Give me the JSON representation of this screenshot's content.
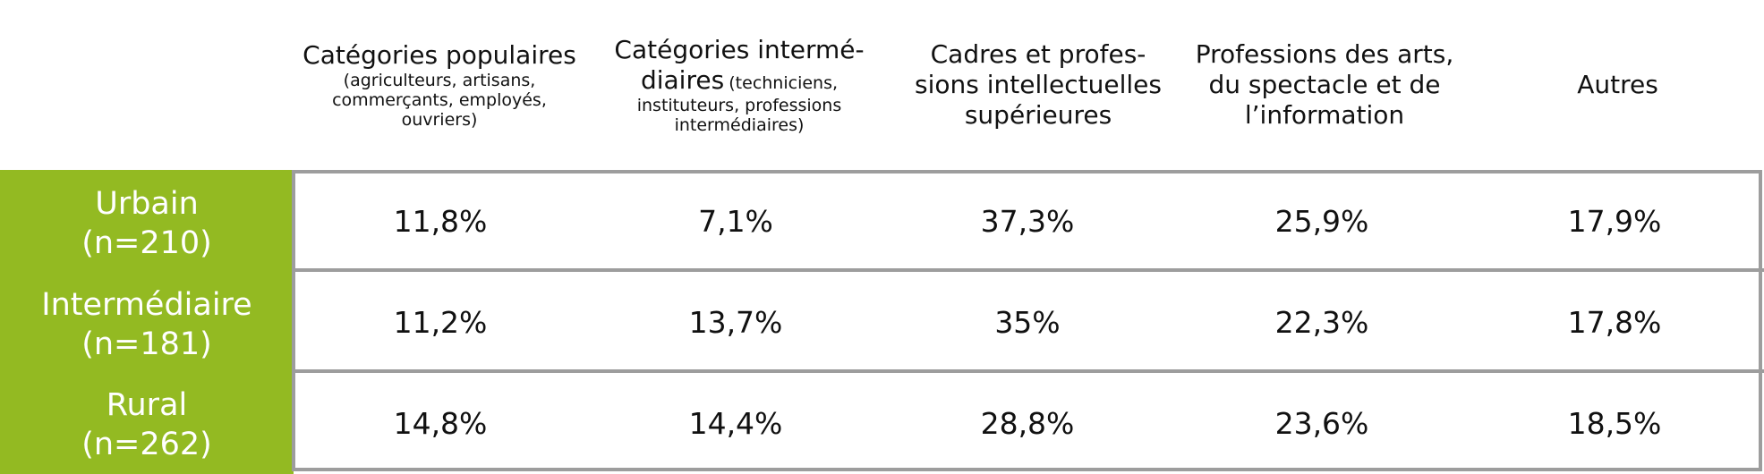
{
  "chart_data": {
    "type": "table",
    "columns": [
      {
        "main": "Catégories populaires",
        "sub": "(agriculteurs, artisans, commerçants, employés, ouvriers)"
      },
      {
        "main": "Catégories intermé-diaires",
        "sub": "(techniciens, instituteurs, professions intermédiaires)"
      },
      {
        "main": "Cadres et profes-sions intellectuelles supérieures",
        "sub": ""
      },
      {
        "main": "Professions des arts, du spectacle et de l’information",
        "sub": ""
      },
      {
        "main": "Autres",
        "sub": ""
      }
    ],
    "rows": [
      {
        "label": "Urbain",
        "n": "(n=210)",
        "values": [
          "11,8%",
          "7,1%",
          "37,3%",
          "25,9%",
          "17,9%"
        ]
      },
      {
        "label": "Intermédiaire",
        "n": "(n=181)",
        "values": [
          "11,2%",
          "13,7%",
          "35%",
          "22,3%",
          "17,8%"
        ]
      },
      {
        "label": "Rural",
        "n": "(n=262)",
        "values": [
          "14,8%",
          "14,4%",
          "28,8%",
          "23,6%",
          "18,5%"
        ]
      }
    ],
    "colors": {
      "row_header_bg": "#93ba22",
      "border": "#9d9d9d",
      "text": "#111111"
    }
  }
}
